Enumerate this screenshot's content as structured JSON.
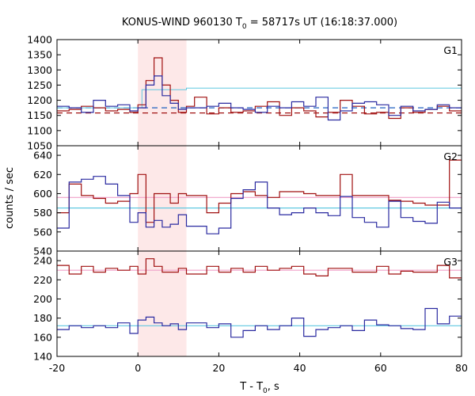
{
  "chart_data": {
    "type": "line",
    "title": {
      "prefix": "KONUS-WIND 960130 T",
      "sub": "0",
      "suffix": " = 58717s UT (16:18:37.000)"
    },
    "xlabel": {
      "prefix": "T - T",
      "sub": "0",
      "suffix": ", s"
    },
    "ylabel": "counts / sec",
    "xlim": [
      -20,
      80
    ],
    "x_ticks": [
      -20,
      0,
      20,
      40,
      60,
      80
    ],
    "highlight_interval": [
      0,
      12
    ],
    "colors": {
      "highlight": "#fde8e8",
      "red_series": "#a01010",
      "blue_series": "#2a2aa0",
      "red_background": "#a01010",
      "blue_background": "#2060c0",
      "pink_curve": "#f0a0c8",
      "cyan_curve": "#60c8e0"
    },
    "panels": [
      {
        "name": "G1",
        "ylim": [
          1050,
          1400
        ],
        "y_ticks": [
          1050,
          1100,
          1150,
          1200,
          1250,
          1300,
          1350,
          1400
        ],
        "background_levels": {
          "red": 1158,
          "blue": 1175
        },
        "background_style": "dashed",
        "bin_edges": [
          -20,
          -17,
          -14,
          -11,
          -8,
          -5,
          -2,
          0,
          2,
          4,
          6,
          8,
          10,
          12,
          14,
          17,
          20,
          23,
          26,
          29,
          32,
          35,
          38,
          41,
          44,
          47,
          50,
          53,
          56,
          59,
          62,
          65,
          68,
          71,
          74,
          77,
          80
        ],
        "series": [
          {
            "name": "G1 red",
            "values": [
              1165,
              1170,
              1180,
              1175,
              1165,
              1170,
              1160,
              1185,
              1265,
              1340,
              1250,
              1200,
              1160,
              1180,
              1210,
              1155,
              1175,
              1160,
              1165,
              1180,
              1195,
              1150,
              1175,
              1165,
              1145,
              1160,
              1200,
              1180,
              1155,
              1160,
              1140,
              1175,
              1160,
              1170,
              1180,
              1165
            ]
          },
          {
            "name": "G1 blue",
            "values": [
              1180,
              1175,
              1160,
              1200,
              1180,
              1185,
              1165,
              1175,
              1250,
              1280,
              1215,
              1190,
              1170,
              1175,
              1175,
              1180,
              1190,
              1175,
              1170,
              1160,
              1180,
              1175,
              1195,
              1180,
              1210,
              1135,
              1165,
              1190,
              1195,
              1185,
              1150,
              1180,
              1165,
              1170,
              1185,
              1175
            ]
          }
        ],
        "model_step": {
          "edges": [
            -20,
            1,
            12,
            80
          ],
          "values": [
            1175,
            1235,
            1240
          ]
        }
      },
      {
        "name": "G2",
        "ylim": [
          540,
          650
        ],
        "y_ticks": [
          540,
          560,
          580,
          600,
          620,
          640
        ],
        "bin_edges": [
          -20,
          -17,
          -14,
          -11,
          -8,
          -5,
          -2,
          0,
          2,
          4,
          6,
          8,
          10,
          12,
          14,
          17,
          20,
          23,
          26,
          29,
          32,
          35,
          38,
          41,
          44,
          47,
          50,
          53,
          56,
          59,
          62,
          65,
          68,
          71,
          74,
          77,
          80
        ],
        "series": [
          {
            "name": "G2 red",
            "values": [
              580,
              610,
              598,
              595,
              590,
              592,
              600,
              620,
              570,
              600,
              600,
              590,
              600,
              598,
              598,
              580,
              590,
              600,
              602,
              598,
              596,
              602,
              602,
              600,
              598,
              598,
              620,
              598,
              598,
              598,
              593,
              592,
              590,
              588,
              588,
              635
            ]
          },
          {
            "name": "G2 blue",
            "values": [
              564,
              612,
              615,
              618,
              610,
              598,
              570,
              580,
              565,
              572,
              565,
              568,
              578,
              566,
              566,
              558,
              564,
              595,
              604,
              612,
              585,
              578,
              580,
              585,
              580,
              577,
              597,
              575,
              570,
              565,
              592,
              575,
              571,
              569,
              591,
              585
            ]
          }
        ],
        "smooth": {
          "pink": 596,
          "cyan": 585
        }
      },
      {
        "name": "G3",
        "ylim": [
          140,
          250
        ],
        "y_ticks": [
          140,
          160,
          180,
          200,
          220,
          240
        ],
        "bin_edges": [
          -20,
          -17,
          -14,
          -11,
          -8,
          -5,
          -2,
          0,
          2,
          4,
          6,
          8,
          10,
          12,
          14,
          17,
          20,
          23,
          26,
          29,
          32,
          35,
          38,
          41,
          44,
          47,
          50,
          53,
          56,
          59,
          62,
          65,
          68,
          71,
          74,
          77,
          80
        ],
        "series": [
          {
            "name": "G3 red",
            "values": [
              235,
              226,
              234,
              228,
              232,
              230,
              234,
              226,
              242,
              234,
              228,
              228,
              232,
              226,
              226,
              234,
              228,
              232,
              228,
              234,
              230,
              232,
              234,
              226,
              224,
              232,
              232,
              228,
              228,
              234,
              226,
              229,
              228,
              228,
              235,
              222
            ]
          },
          {
            "name": "G3 blue",
            "values": [
              168,
              172,
              170,
              172,
              170,
              175,
              164,
              178,
              181,
              175,
              172,
              174,
              168,
              175,
              175,
              170,
              174,
              160,
              167,
              172,
              168,
              172,
              180,
              161,
              168,
              170,
              172,
              167,
              178,
              173,
              172,
              169,
              168,
              190,
              174,
              182
            ]
          }
        ],
        "smooth": {
          "pink": 230,
          "cyan": 172
        }
      }
    ]
  }
}
